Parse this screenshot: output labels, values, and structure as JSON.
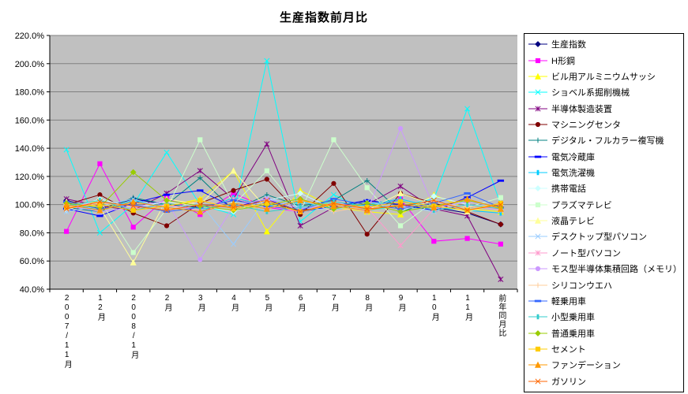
{
  "chart_data": {
    "type": "line",
    "title": "生産指数前月比",
    "unit": "%",
    "plot_bg": "#C0C0C0",
    "grid_color": "#808080",
    "axis_color": "#000000",
    "grid": true,
    "legend_position": "right",
    "ylim": [
      40,
      220
    ],
    "ytick_values": [
      220,
      200,
      180,
      160,
      140,
      120,
      100,
      80,
      60,
      40
    ],
    "yticks": [
      "220.0%",
      "200.0%",
      "180.0%",
      "160.0%",
      "140.0%",
      "120.0%",
      "100.0%",
      "80.0%",
      "60.0%",
      "40.0%"
    ],
    "categories": [
      "2007/11月",
      "12月",
      "2008/1月",
      "2月",
      "3月",
      "4月",
      "5月",
      "6月",
      "7月",
      "8月",
      "9月",
      "10月",
      "11月",
      "前年同月比"
    ],
    "series": [
      {
        "name": "生産指数",
        "color": "#000080",
        "marker": "diamond",
        "values": [
          103,
          97,
          104,
          100,
          98,
          103,
          101,
          96,
          99,
          102,
          100,
          98,
          94,
          86
        ]
      },
      {
        "name": "H形鋼",
        "color": "#FF00FF",
        "marker": "square",
        "values": [
          81,
          129,
          84,
          105,
          93,
          108,
          98,
          95,
          101,
          97,
          104,
          74,
          76,
          72
        ]
      },
      {
        "name": "ビル用アルミニウムサッシ",
        "color": "#FFFF00",
        "marker": "triangle",
        "values": [
          100,
          102,
          96,
          99,
          104,
          124,
          81,
          110,
          98,
          95,
          93,
          107,
          97,
          95
        ]
      },
      {
        "name": "ショベル系掘削機械",
        "color": "#00FFFF",
        "marker": "x",
        "values": [
          139,
          80,
          100,
          137,
          100,
          93,
          202,
          88,
          107,
          96,
          99,
          104,
          168,
          100
        ]
      },
      {
        "name": "半導体製造装置",
        "color": "#800080",
        "marker": "star",
        "values": [
          104,
          99,
          96,
          108,
          124,
          104,
          143,
          85,
          98,
          100,
          113,
          97,
          92,
          47
        ]
      },
      {
        "name": "マシニングセンタ",
        "color": "#800000",
        "marker": "circle",
        "values": [
          100,
          107,
          94,
          85,
          101,
          110,
          118,
          93,
          115,
          79,
          108,
          101,
          95,
          86
        ]
      },
      {
        "name": "デジタル・フルカラー複写機",
        "color": "#008080",
        "marker": "plus",
        "values": [
          98,
          95,
          105,
          100,
          119,
          96,
          107,
          99,
          103,
          117,
          95,
          102,
          98,
          100
        ]
      },
      {
        "name": "電気冷蔵庫",
        "color": "#0000FF",
        "marker": "dash",
        "values": [
          97,
          92,
          101,
          107,
          110,
          98,
          104,
          95,
          99,
          103,
          100,
          96,
          105,
          117
        ]
      },
      {
        "name": "電気洗濯機",
        "color": "#00CCFF",
        "marker": "pipe",
        "values": [
          101,
          96,
          103,
          98,
          95,
          105,
          99,
          102,
          97,
          100,
          104,
          98,
          96,
          94
        ]
      },
      {
        "name": "携帯電話",
        "color": "#CCFFFF",
        "marker": "diamond",
        "values": [
          96,
          104,
          98,
          102,
          99,
          95,
          103,
          108,
          97,
          101,
          95,
          106,
          100,
          98
        ]
      },
      {
        "name": "プラズマテレビ",
        "color": "#CCFFCC",
        "marker": "square",
        "values": [
          99,
          103,
          66,
          97,
          146,
          100,
          124,
          95,
          146,
          112,
          85,
          102,
          98,
          105
        ]
      },
      {
        "name": "液晶テレビ",
        "color": "#FFFF99",
        "marker": "triangle",
        "values": [
          102,
          98,
          59,
          104,
          100,
          124,
          97,
          103,
          99,
          96,
          108,
          100,
          95,
          101
        ]
      },
      {
        "name": "デスクトップ型パソコン",
        "color": "#99CCFF",
        "marker": "x",
        "values": [
          95,
          99,
          104,
          97,
          101,
          72,
          105,
          98,
          96,
          102,
          99,
          95,
          103,
          97
        ]
      },
      {
        "name": "ノート型パソコン",
        "color": "#FF99CC",
        "marker": "star",
        "values": [
          98,
          102,
          97,
          100,
          96,
          104,
          99,
          95,
          101,
          98,
          71,
          97,
          100,
          96
        ]
      },
      {
        "name": "モス型半導体集積回路（メモリ）",
        "color": "#CC99FF",
        "marker": "circle",
        "values": [
          100,
          95,
          98,
          103,
          61,
          99,
          104,
          97,
          100,
          95,
          154,
          98,
          102,
          99
        ]
      },
      {
        "name": "シリコンウエハ",
        "color": "#FFCC99",
        "marker": "plus",
        "values": [
          97,
          101,
          99,
          96,
          103,
          98,
          100,
          104,
          95,
          99,
          97,
          102,
          98,
          100
        ]
      },
      {
        "name": "軽乗用車",
        "color": "#3366FF",
        "marker": "dash",
        "values": [
          102,
          97,
          100,
          95,
          98,
          103,
          99,
          96,
          104,
          100,
          97,
          101,
          108,
          98
        ]
      },
      {
        "name": "小型乗用車",
        "color": "#33CCCC",
        "marker": "pipe",
        "values": [
          99,
          103,
          96,
          101,
          97,
          100,
          95,
          98,
          102,
          99,
          103,
          96,
          100,
          97
        ]
      },
      {
        "name": "普通乗用車",
        "color": "#99CC00",
        "marker": "diamond",
        "values": [
          101,
          98,
          123,
          103,
          99,
          96,
          100,
          104,
          97,
          101,
          95,
          99,
          103,
          98
        ]
      },
      {
        "name": "セメント",
        "color": "#FFCC00",
        "marker": "square",
        "values": [
          98,
          100,
          96,
          99,
          103,
          97,
          101,
          95,
          100,
          98,
          102,
          99,
          96,
          101
        ]
      },
      {
        "name": "ファンデーション",
        "color": "#FF9900",
        "marker": "triangle",
        "values": [
          100,
          96,
          102,
          98,
          95,
          101,
          97,
          103,
          99,
          96,
          100,
          98,
          104,
          97
        ]
      },
      {
        "name": "ガソリン",
        "color": "#FF6600",
        "marker": "x",
        "values": [
          97,
          102,
          99,
          96,
          100,
          98,
          103,
          95,
          101,
          97,
          99,
          103,
          96,
          100
        ]
      }
    ]
  }
}
